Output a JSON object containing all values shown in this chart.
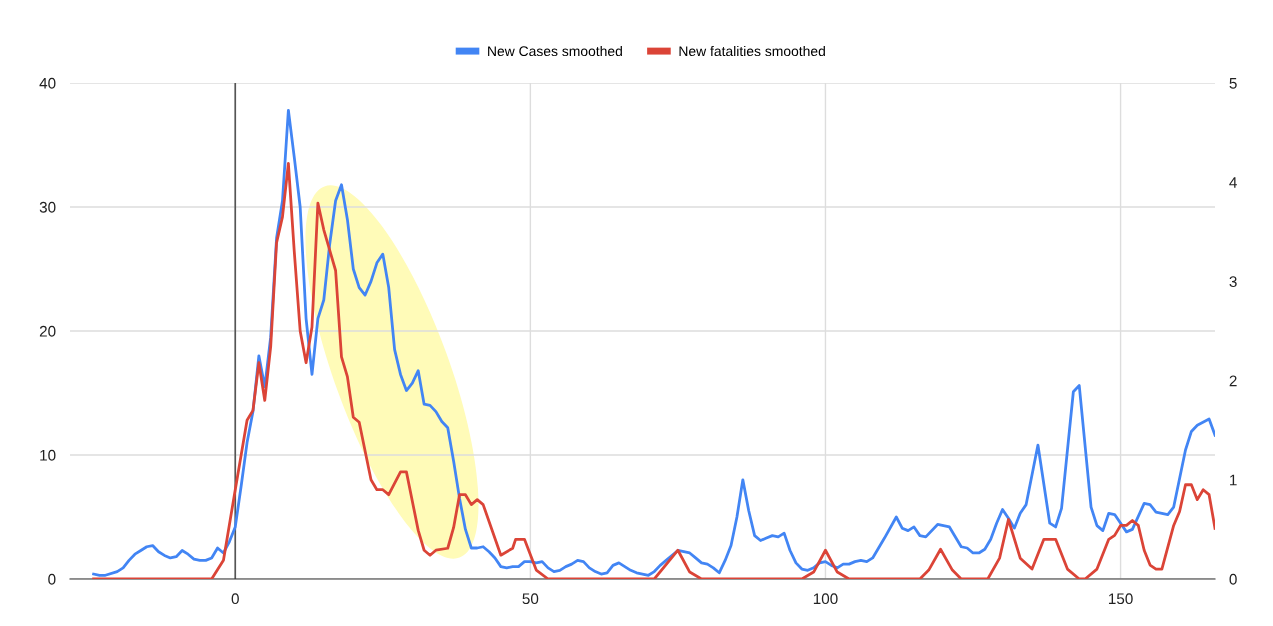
{
  "chart_data": {
    "type": "line",
    "legend": "top",
    "grid": true,
    "line_style": "solid",
    "xlim": [
      -28,
      166
    ],
    "xticks": [
      0,
      50,
      100,
      150
    ],
    "ylim": [
      0,
      40
    ],
    "yticks": [
      0,
      10,
      20,
      30,
      40
    ],
    "y2lim": [
      0,
      5
    ],
    "y2ticks": [
      0,
      1,
      2,
      3,
      4,
      5
    ],
    "ref_lines": [
      {
        "axis": "x",
        "value": 0,
        "color": "#555555"
      }
    ],
    "series": [
      {
        "name": "New Cases smoothed",
        "color": "#4285f4",
        "axis": "y",
        "x": [
          -24,
          -23,
          -22,
          -20,
          -19,
          -18,
          -17,
          -16,
          -15,
          -14,
          -13,
          -12,
          -11,
          -10,
          -9,
          -8,
          -7,
          -6,
          -5,
          -4,
          -3,
          -2,
          -1,
          0,
          1,
          2,
          3,
          4,
          5,
          6,
          7,
          8,
          9,
          10,
          11,
          12,
          13,
          14,
          15,
          16,
          17,
          18,
          19,
          20,
          21,
          22,
          23,
          24,
          25,
          26,
          27,
          28,
          29,
          30,
          31,
          32,
          33,
          34,
          35,
          36,
          37,
          38,
          39,
          40,
          41,
          42,
          43,
          44,
          45,
          46,
          47,
          48,
          49,
          50,
          51,
          52,
          53,
          54,
          55,
          56,
          57,
          58,
          59,
          60,
          61,
          62,
          63,
          64,
          65,
          66,
          67,
          68,
          69,
          70,
          71,
          72,
          73,
          75,
          76,
          77,
          78,
          79,
          80,
          81,
          82,
          83,
          84,
          85,
          86,
          87,
          88,
          89,
          90,
          91,
          92,
          93,
          94,
          95,
          96,
          97,
          98,
          99,
          100,
          101,
          102,
          103,
          104,
          105,
          106,
          107,
          108,
          109,
          110,
          112,
          113,
          114,
          115,
          116,
          117,
          119,
          121,
          123,
          124,
          125,
          126,
          127,
          128,
          129,
          130,
          131,
          132,
          133,
          134,
          136,
          138,
          139,
          140,
          142,
          143,
          145,
          146,
          147,
          148,
          149,
          151,
          152,
          154,
          155,
          156,
          158,
          159,
          161,
          162,
          163,
          165,
          166
        ],
        "values": [
          0.4,
          0.3,
          0.3,
          0.6,
          0.9,
          1.5,
          2.0,
          2.3,
          2.6,
          2.7,
          2.2,
          1.9,
          1.7,
          1.8,
          2.3,
          2.0,
          1.6,
          1.5,
          1.5,
          1.7,
          2.5,
          2.1,
          3.0,
          4.2,
          7.5,
          11.0,
          13.5,
          18.0,
          15.5,
          19.5,
          27.5,
          30.5,
          37.8,
          34.0,
          30.0,
          21.0,
          16.5,
          21.0,
          22.5,
          27.0,
          30.5,
          31.8,
          29.0,
          25.0,
          23.5,
          22.9,
          24.0,
          25.5,
          26.2,
          23.5,
          18.5,
          16.5,
          15.2,
          15.8,
          16.8,
          14.1,
          14.0,
          13.5,
          12.7,
          12.2,
          9.5,
          6.5,
          4.0,
          2.5,
          2.5,
          2.6,
          2.2,
          1.7,
          1.0,
          0.9,
          1.0,
          1.0,
          1.4,
          1.4,
          1.3,
          1.4,
          0.9,
          0.6,
          0.7,
          1.0,
          1.2,
          1.5,
          1.4,
          0.9,
          0.6,
          0.4,
          0.5,
          1.1,
          1.3,
          1.0,
          0.7,
          0.5,
          0.4,
          0.3,
          0.6,
          1.1,
          1.5,
          2.3,
          2.2,
          2.1,
          1.7,
          1.3,
          1.2,
          0.9,
          0.5,
          1.5,
          2.7,
          5.0,
          8.0,
          5.5,
          3.5,
          3.1,
          3.3,
          3.5,
          3.4,
          3.7,
          2.3,
          1.3,
          0.8,
          0.7,
          0.9,
          1.3,
          1.4,
          1.1,
          0.9,
          1.2,
          1.2,
          1.4,
          1.5,
          1.4,
          1.7,
          2.5,
          3.3,
          5.0,
          4.1,
          3.9,
          4.2,
          3.5,
          3.4,
          4.4,
          4.2,
          2.6,
          2.5,
          2.1,
          2.1,
          2.4,
          3.2,
          4.5,
          5.6,
          4.9,
          4.1,
          5.3,
          6.0,
          10.8,
          4.5,
          4.2,
          5.7,
          15.1,
          15.6,
          5.8,
          4.3,
          3.9,
          5.3,
          5.2,
          3.8,
          4.0,
          6.1,
          6.0,
          5.4,
          5.2,
          5.8,
          10.4,
          11.9,
          12.4,
          12.9,
          11.6
        ]
      },
      {
        "name": "New fatalities smoothed",
        "color": "#db4437",
        "axis": "y2",
        "x": [
          -24,
          -4,
          -2,
          0,
          2,
          3,
          4,
          5,
          6,
          7,
          8,
          9,
          10,
          11,
          12,
          13,
          14,
          15,
          17,
          18,
          19,
          20,
          21,
          23,
          24,
          25,
          26,
          28,
          29,
          31,
          32,
          33,
          34,
          36,
          37,
          38,
          39,
          40,
          41,
          42,
          45,
          47,
          47.5,
          49,
          51,
          53,
          71,
          75,
          77,
          79,
          96,
          98,
          100,
          102,
          104,
          116,
          117.5,
          119.5,
          121.5,
          123,
          127.5,
          129.5,
          131,
          133,
          135,
          137,
          139,
          141,
          143,
          144,
          146,
          148,
          149,
          150,
          151,
          152,
          153,
          154,
          155,
          156,
          157,
          159,
          160,
          161,
          162,
          163,
          164,
          165,
          166
        ],
        "values": [
          0,
          0,
          0.19,
          0.9,
          1.6,
          1.7,
          2.18,
          1.8,
          2.34,
          3.39,
          3.65,
          4.19,
          3.3,
          2.5,
          2.18,
          2.54,
          3.79,
          3.52,
          3.11,
          2.24,
          2.04,
          1.63,
          1.58,
          1.0,
          0.9,
          0.9,
          0.85,
          1.08,
          1.08,
          0.49,
          0.29,
          0.24,
          0.29,
          0.31,
          0.52,
          0.85,
          0.85,
          0.75,
          0.8,
          0.75,
          0.24,
          0.31,
          0.4,
          0.4,
          0.09,
          0,
          0,
          0.29,
          0.07,
          0,
          0,
          0.07,
          0.29,
          0.07,
          0,
          0,
          0.09,
          0.3,
          0.09,
          0,
          0,
          0.21,
          0.6,
          0.21,
          0.1,
          0.4,
          0.4,
          0.1,
          0,
          0,
          0.1,
          0.4,
          0.44,
          0.54,
          0.54,
          0.59,
          0.54,
          0.29,
          0.14,
          0.1,
          0.1,
          0.54,
          0.68,
          0.95,
          0.95,
          0.8,
          0.9,
          0.85,
          0.51
        ]
      }
    ]
  }
}
